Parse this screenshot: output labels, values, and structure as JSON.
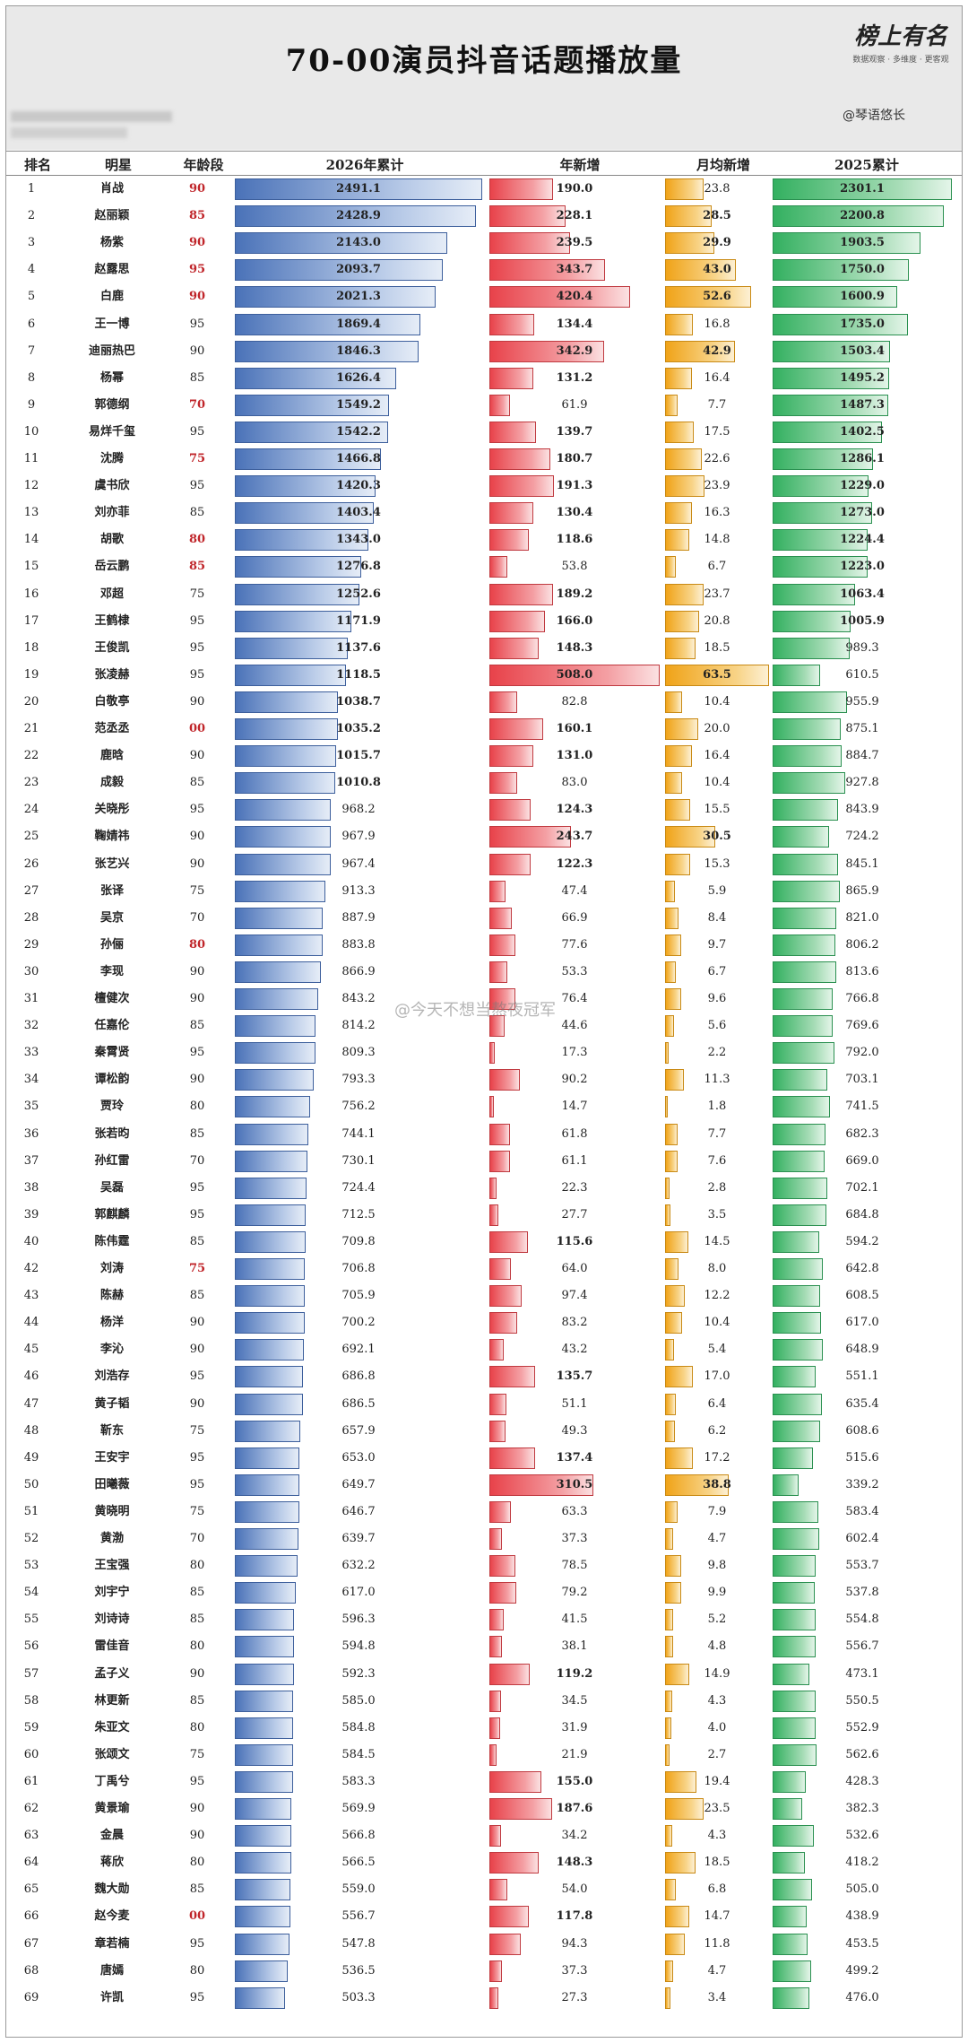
{
  "header": {
    "title": "70-00演员抖音话题播放量",
    "logo_text": "榜上有名",
    "logo_sub": "数据观察 · 多维度 · 更客观",
    "author": "@琴语悠长"
  },
  "watermark": "@今天不想当熬夜冠军",
  "chart_data": {
    "type": "table",
    "columns": [
      "排名",
      "明星",
      "年龄段",
      "2026年累计",
      "年新增",
      "月均新增",
      "2025累计"
    ],
    "rows": [
      [
        1,
        "肖战",
        90,
        2491.1,
        190.0,
        23.8,
        2301.1
      ],
      [
        2,
        "赵丽颖",
        85,
        2428.9,
        228.1,
        28.5,
        2200.8
      ],
      [
        3,
        "杨紫",
        90,
        2143.0,
        239.5,
        29.9,
        1903.5
      ],
      [
        4,
        "赵露思",
        95,
        2093.7,
        343.7,
        43.0,
        1750.0
      ],
      [
        5,
        "白鹿",
        90,
        2021.3,
        420.4,
        52.6,
        1600.9
      ],
      [
        6,
        "王一博",
        95,
        1869.4,
        134.4,
        16.8,
        1735.0
      ],
      [
        7,
        "迪丽热巴",
        90,
        1846.3,
        342.9,
        42.9,
        1503.4
      ],
      [
        8,
        "杨幂",
        85,
        1626.4,
        131.2,
        16.4,
        1495.2
      ],
      [
        9,
        "郭德纲",
        70,
        1549.2,
        61.9,
        7.7,
        1487.3
      ],
      [
        10,
        "易烊千玺",
        95,
        1542.2,
        139.7,
        17.5,
        1402.5
      ],
      [
        11,
        "沈腾",
        75,
        1466.8,
        180.7,
        22.6,
        1286.1
      ],
      [
        12,
        "虞书欣",
        95,
        1420.3,
        191.3,
        23.9,
        1229.0
      ],
      [
        13,
        "刘亦菲",
        85,
        1403.4,
        130.4,
        16.3,
        1273.0
      ],
      [
        14,
        "胡歌",
        80,
        1343.0,
        118.6,
        14.8,
        1224.4
      ],
      [
        15,
        "岳云鹏",
        85,
        1276.8,
        53.8,
        6.7,
        1223.0
      ],
      [
        16,
        "邓超",
        75,
        1252.6,
        189.2,
        23.7,
        1063.4
      ],
      [
        17,
        "王鹤棣",
        95,
        1171.9,
        166.0,
        20.8,
        1005.9
      ],
      [
        18,
        "王俊凯",
        95,
        1137.6,
        148.3,
        18.5,
        989.3
      ],
      [
        19,
        "张凌赫",
        95,
        1118.5,
        508.0,
        63.5,
        610.5
      ],
      [
        20,
        "白敬亭",
        90,
        1038.7,
        82.8,
        10.4,
        955.9
      ],
      [
        21,
        "范丞丞",
        0,
        1035.2,
        160.1,
        20.0,
        875.1
      ],
      [
        22,
        "鹿晗",
        90,
        1015.7,
        131.0,
        16.4,
        884.7
      ],
      [
        23,
        "成毅",
        85,
        1010.8,
        83.0,
        10.4,
        927.8
      ],
      [
        24,
        "关晓彤",
        95,
        968.2,
        124.3,
        15.5,
        843.9
      ],
      [
        25,
        "鞠婧祎",
        90,
        967.9,
        243.7,
        30.5,
        724.2
      ],
      [
        26,
        "张艺兴",
        90,
        967.4,
        122.3,
        15.3,
        845.1
      ],
      [
        27,
        "张译",
        75,
        913.3,
        47.4,
        5.9,
        865.9
      ],
      [
        28,
        "吴京",
        70,
        887.9,
        66.9,
        8.4,
        821.0
      ],
      [
        29,
        "孙俪",
        80,
        883.8,
        77.6,
        9.7,
        806.2
      ],
      [
        30,
        "李现",
        90,
        866.9,
        53.3,
        6.7,
        813.6
      ],
      [
        31,
        "檀健次",
        90,
        843.2,
        76.4,
        9.6,
        766.8
      ],
      [
        32,
        "任嘉伦",
        85,
        814.2,
        44.6,
        5.6,
        769.6
      ],
      [
        33,
        "秦霄贤",
        95,
        809.3,
        17.3,
        2.2,
        792.0
      ],
      [
        34,
        "谭松韵",
        90,
        793.3,
        90.2,
        11.3,
        703.1
      ],
      [
        35,
        "贾玲",
        80,
        756.2,
        14.7,
        1.8,
        741.5
      ],
      [
        36,
        "张若昀",
        85,
        744.1,
        61.8,
        7.7,
        682.3
      ],
      [
        37,
        "孙红雷",
        70,
        730.1,
        61.1,
        7.6,
        669.0
      ],
      [
        38,
        "吴磊",
        95,
        724.4,
        22.3,
        2.8,
        702.1
      ],
      [
        39,
        "郭麒麟",
        95,
        712.5,
        27.7,
        3.5,
        684.8
      ],
      [
        40,
        "陈伟霆",
        85,
        709.8,
        115.6,
        14.5,
        594.2
      ],
      [
        42,
        "刘涛",
        75,
        706.8,
        64.0,
        8.0,
        642.8
      ],
      [
        43,
        "陈赫",
        85,
        705.9,
        97.4,
        12.2,
        608.5
      ],
      [
        44,
        "杨洋",
        90,
        700.2,
        83.2,
        10.4,
        617.0
      ],
      [
        45,
        "李沁",
        90,
        692.1,
        43.2,
        5.4,
        648.9
      ],
      [
        46,
        "刘浩存",
        95,
        686.8,
        135.7,
        17.0,
        551.1
      ],
      [
        47,
        "黄子韬",
        90,
        686.5,
        51.1,
        6.4,
        635.4
      ],
      [
        48,
        "靳东",
        75,
        657.9,
        49.3,
        6.2,
        608.6
      ],
      [
        49,
        "王安宇",
        95,
        653.0,
        137.4,
        17.2,
        515.6
      ],
      [
        50,
        "田曦薇",
        95,
        649.7,
        310.5,
        38.8,
        339.2
      ],
      [
        51,
        "黄晓明",
        75,
        646.7,
        63.3,
        7.9,
        583.4
      ],
      [
        52,
        "黄渤",
        70,
        639.7,
        37.3,
        4.7,
        602.4
      ],
      [
        53,
        "王宝强",
        80,
        632.2,
        78.5,
        9.8,
        553.7
      ],
      [
        54,
        "刘宇宁",
        85,
        617.0,
        79.2,
        9.9,
        537.8
      ],
      [
        55,
        "刘诗诗",
        85,
        596.3,
        41.5,
        5.2,
        554.8
      ],
      [
        56,
        "雷佳音",
        80,
        594.8,
        38.1,
        4.8,
        556.7
      ],
      [
        57,
        "孟子义",
        90,
        592.3,
        119.2,
        14.9,
        473.1
      ],
      [
        58,
        "林更新",
        85,
        585.0,
        34.5,
        4.3,
        550.5
      ],
      [
        59,
        "朱亚文",
        80,
        584.8,
        31.9,
        4.0,
        552.9
      ],
      [
        60,
        "张颂文",
        75,
        584.5,
        21.9,
        2.7,
        562.6
      ],
      [
        61,
        "丁禹兮",
        95,
        583.3,
        155.0,
        19.4,
        428.3
      ],
      [
        62,
        "黄景瑜",
        90,
        569.9,
        187.6,
        23.5,
        382.3
      ],
      [
        63,
        "金晨",
        90,
        566.8,
        34.2,
        4.3,
        532.6
      ],
      [
        64,
        "蒋欣",
        80,
        566.5,
        148.3,
        18.5,
        418.2
      ],
      [
        65,
        "魏大勋",
        85,
        559.0,
        54.0,
        6.8,
        505.0
      ],
      [
        66,
        "赵今麦",
        0,
        556.7,
        117.8,
        14.7,
        438.9
      ],
      [
        67,
        "章若楠",
        95,
        547.8,
        94.3,
        11.8,
        453.5
      ],
      [
        68,
        "唐嫣",
        80,
        536.5,
        37.3,
        4.7,
        499.2
      ],
      [
        69,
        "许凯",
        95,
        503.3,
        27.3,
        3.4,
        476.0
      ]
    ],
    "highlight_ages": [
      1,
      2,
      3,
      4,
      5,
      9,
      11,
      14,
      15,
      21,
      29,
      42,
      66
    ],
    "bold_columns": {
      "2026": [
        1,
        2,
        3,
        4,
        5,
        6,
        7,
        8,
        9,
        10,
        11,
        12,
        13,
        14,
        15,
        16,
        17,
        18,
        19,
        20,
        21,
        22,
        23
      ],
      "year_new_min": 100,
      "month_min": 28,
      "y2025_min": 1000
    },
    "colors": {
      "blue": "#4a72b8",
      "red": "#e8424a",
      "yellow": "#f0a318",
      "green": "#33b060",
      "age_highlight": "#c0252a"
    },
    "scales": {
      "c2026_max": 2491.1,
      "year_new_max": 508.0,
      "month_max": 63.5,
      "y2025_max": 2301.1
    }
  }
}
